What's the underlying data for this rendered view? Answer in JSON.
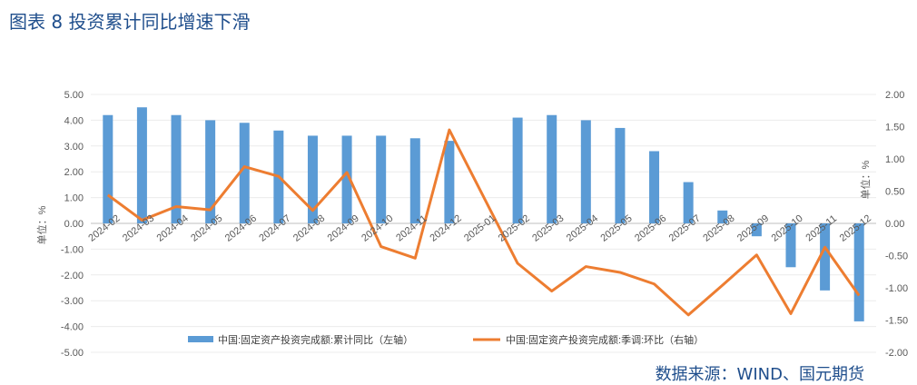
{
  "title": "图表 8 投资累计同比增速下滑",
  "source": "数据来源：WIND、国元期货",
  "colors": {
    "bar": "#5b9bd5",
    "line": "#ed7d31",
    "title": "#1f4e8c"
  },
  "chart_data": {
    "type": "bar",
    "categories": [
      "2024-02",
      "2024-03",
      "2024-04",
      "2024-05",
      "2024-06",
      "2024-07",
      "2024-08",
      "2024-09",
      "2024-10",
      "2024-11",
      "2024-12",
      "2025-01",
      "2025-02",
      "2025-03",
      "2025-04",
      "2025-05",
      "2025-06",
      "2025-07",
      "2025-08",
      "2025-09",
      "2025-10",
      "2025-11",
      "2025-12"
    ],
    "series": [
      {
        "name": "中国:固定资产投资完成额:累计同比（左轴）",
        "type": "bar",
        "axis": "left",
        "values": [
          4.2,
          4.5,
          4.2,
          4.0,
          3.9,
          3.6,
          3.4,
          3.4,
          3.4,
          3.3,
          3.2,
          null,
          4.1,
          4.2,
          4.0,
          3.7,
          2.8,
          1.6,
          0.5,
          -0.5,
          -1.7,
          -2.6,
          -3.8
        ]
      },
      {
        "name": "中国:固定资产投资完成额:季调:环比（右轴）",
        "type": "line",
        "axis": "right",
        "values": [
          0.44,
          0.05,
          0.26,
          0.21,
          0.88,
          0.73,
          0.2,
          0.79,
          -0.36,
          -0.54,
          1.45,
          null,
          -0.62,
          -1.05,
          -0.67,
          -0.76,
          -0.94,
          -1.42,
          -0.96,
          -0.49,
          -1.4,
          -0.37,
          -1.12
        ]
      }
    ],
    "ylabel_left": "单位：%",
    "ylabel_right": "单位：%",
    "ylim_left": [
      -5,
      5
    ],
    "ylim_right": [
      -2,
      2
    ],
    "yticks_left": [
      "5.00",
      "4.00",
      "3.00",
      "2.00",
      "1.00",
      "0.00",
      "-1.00",
      "-2.00",
      "-3.00",
      "-4.00",
      "-5.00"
    ],
    "yticks_right": [
      "2.00",
      "1.50",
      "1.00",
      "0.50",
      "0.00",
      "-0.50",
      "-1.00",
      "-1.50",
      "-2.00"
    ],
    "legend_position": "bottom",
    "grid": true
  }
}
